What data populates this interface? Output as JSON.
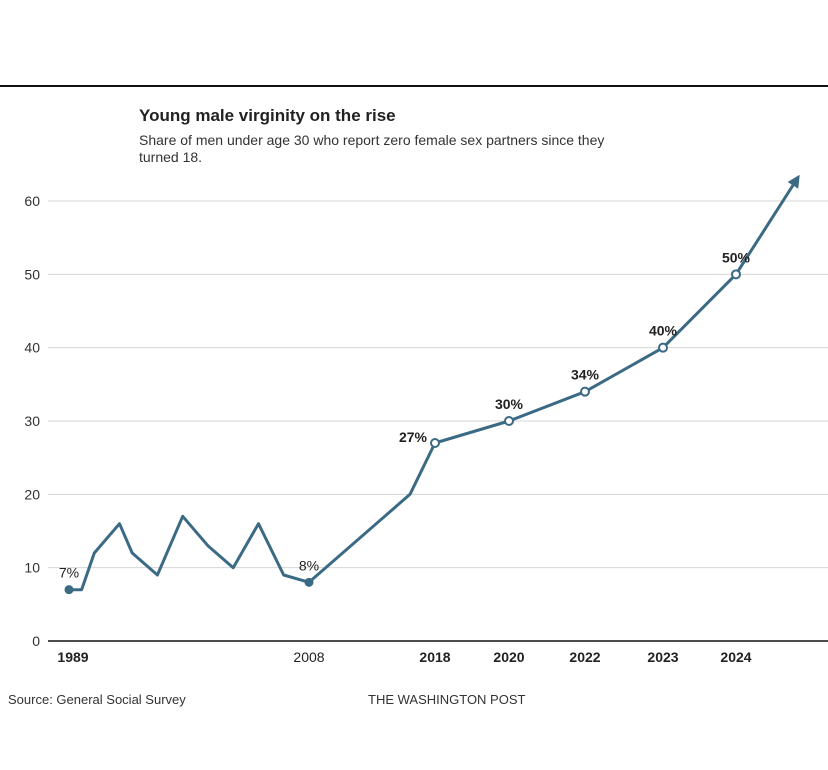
{
  "chart_data": {
    "type": "line",
    "title": "Young male virginity on the rise",
    "subtitle": "Share of men under age 30 who report zero female sex partners since they turned 18.",
    "xlabel": "",
    "ylabel": "",
    "ylim": [
      0,
      60
    ],
    "yticks": [
      0,
      10,
      20,
      30,
      40,
      50,
      60
    ],
    "grid": true,
    "series": [
      {
        "name": "Share of men under 30 with zero female sex partners since 18",
        "color": "#3b6a85",
        "points": [
          {
            "x": 1989,
            "y": 7
          },
          {
            "x": 1990,
            "y": 7
          },
          {
            "x": 1991,
            "y": 12
          },
          {
            "x": 1993,
            "y": 16
          },
          {
            "x": 1994,
            "y": 12
          },
          {
            "x": 1996,
            "y": 9
          },
          {
            "x": 1998,
            "y": 17
          },
          {
            "x": 2000,
            "y": 13
          },
          {
            "x": 2002,
            "y": 10
          },
          {
            "x": 2004,
            "y": 16
          },
          {
            "x": 2006,
            "y": 9
          },
          {
            "x": 2008,
            "y": 8
          },
          {
            "x": 2016,
            "y": 20
          },
          {
            "x": 2018,
            "y": 27
          },
          {
            "x": 2020,
            "y": 30
          },
          {
            "x": 2022,
            "y": 34
          },
          {
            "x": 2023,
            "y": 40
          },
          {
            "x": 2024,
            "y": 50
          },
          {
            "x": 2025,
            "y": 63
          }
        ]
      }
    ],
    "x_ticks": [
      {
        "label": "1989",
        "bold": true
      },
      {
        "label": "2008",
        "bold": false
      },
      {
        "label": "2018",
        "bold": true
      },
      {
        "label": "2020",
        "bold": true
      },
      {
        "label": "2022",
        "bold": true
      },
      {
        "label": "2023",
        "bold": true
      },
      {
        "label": "2024",
        "bold": true
      }
    ],
    "markers": [
      {
        "x": 1989,
        "y": 7,
        "label": "7%",
        "style": "filled"
      },
      {
        "x": 2008,
        "y": 8,
        "label": "8%",
        "style": "filled"
      },
      {
        "x": 2018,
        "y": 27,
        "label": "27%",
        "style": "open"
      },
      {
        "x": 2020,
        "y": 30,
        "label": "30%",
        "style": "open"
      },
      {
        "x": 2022,
        "y": 34,
        "label": "34%",
        "style": "open"
      },
      {
        "x": 2023,
        "y": 40,
        "label": "40%",
        "style": "open"
      },
      {
        "x": 2024,
        "y": 50,
        "label": "50%",
        "style": "open"
      }
    ],
    "arrow": true
  },
  "footer": {
    "source": "Source: General Social Survey",
    "credit": "THE WASHINGTON POST"
  }
}
